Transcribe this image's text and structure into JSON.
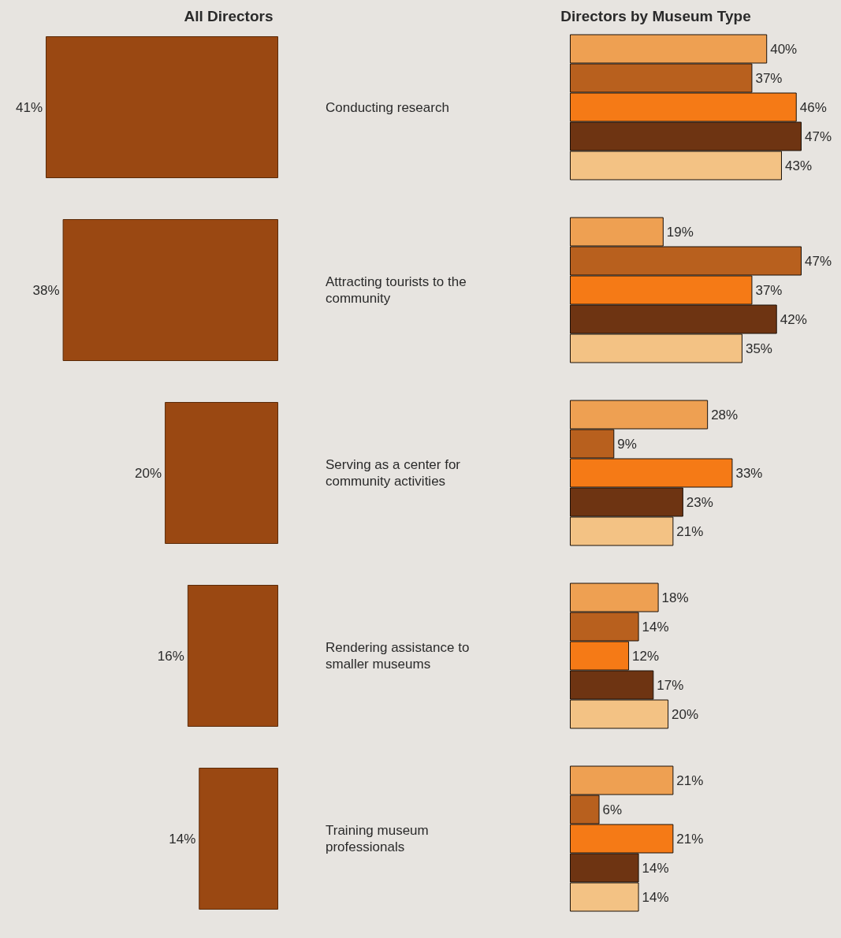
{
  "chart_data": [
    {
      "type": "bar",
      "orientation": "horizontal",
      "title": "All Directors",
      "categories": [
        "Conducting research",
        "Attracting tourists to the community",
        "Serving as a center for community activities",
        "Rendering assistance to smaller museums",
        "Training museum professionals"
      ],
      "values": [
        41,
        38,
        20,
        16,
        14
      ],
      "color": "#9a4812",
      "value_labels": [
        "41%",
        "38%",
        "20%",
        "16%",
        "14%"
      ]
    },
    {
      "type": "bar",
      "orientation": "horizontal",
      "title": "Directors by Museum Type",
      "categories": [
        null,
        null,
        null,
        null,
        null
      ],
      "series": [
        {
          "color": "#eea052",
          "values": [
            40,
            19,
            28,
            18,
            21
          ],
          "value_labels": [
            "40%",
            "19%",
            "28%",
            "18%",
            "21%"
          ]
        },
        {
          "color": "#b8601e",
          "values": [
            37,
            47,
            9,
            14,
            6
          ],
          "value_labels": [
            "37%",
            "47%",
            "9%",
            "14%",
            "6%"
          ]
        },
        {
          "color": "#f57a16",
          "values": [
            46,
            37,
            33,
            12,
            21
          ],
          "value_labels": [
            "46%",
            "37%",
            "33%",
            "12%",
            "21%"
          ]
        },
        {
          "color": "#6e3412",
          "values": [
            47,
            42,
            23,
            17,
            14
          ],
          "value_labels": [
            "47%",
            "42%",
            "23%",
            "17%",
            "14%"
          ]
        },
        {
          "color": "#f3c284",
          "values": [
            43,
            35,
            21,
            20,
            14
          ],
          "value_labels": [
            "43%",
            "35%",
            "21%",
            "20%",
            "14%"
          ]
        }
      ]
    }
  ]
}
